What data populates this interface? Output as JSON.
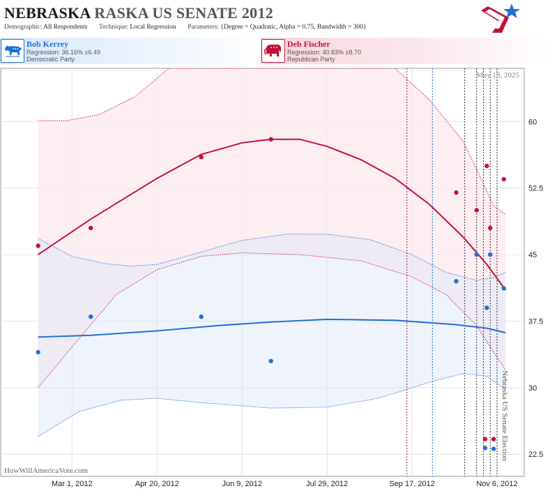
{
  "header": {
    "title_state": "NEBRASKA",
    "title_rest": "RASKA US SENATE 2012",
    "demographic_label": "Demographic:",
    "demographic_value": "All Respondents",
    "technique_label": "Technique:",
    "technique_value": "Local Regression",
    "parameters_label": "Parameters:",
    "parameters_value": "{Degree = Quadratic, Alpha = 0.75, Bandwidth = 300}"
  },
  "candidates": {
    "dem": {
      "name": "Bob Kerrey",
      "regression": "Regression: 36.16% ±6.49",
      "party": "Democratic Party",
      "icon": "donkey-icon",
      "color": "#1f6fd6"
    },
    "rep": {
      "name": "Deb Fischer",
      "regression": "Regression: 40.83% ±8.70",
      "party": "Republican Party",
      "icon": "elephant-icon",
      "color": "#c3113a"
    }
  },
  "watermark": "HowWillAmericaVote.com",
  "date_stamp": "May 13, 2025",
  "colors": {
    "dem": "#1f6fd6",
    "rep": "#c3113a",
    "dem_band": "#dbe7f8",
    "rep_band": "#fce8ee",
    "grid": "#e3e3e3"
  },
  "chart_data": {
    "type": "scatter",
    "x_axis": {
      "type": "date",
      "range": [
        "2012-01-19",
        "2012-11-22"
      ],
      "ticks": [
        {
          "date": "2012-03-01",
          "label": "Mar 1, 2012"
        },
        {
          "date": "2012-04-20",
          "label": "Apr 20, 2012"
        },
        {
          "date": "2012-06-09",
          "label": "Jun 9, 2012"
        },
        {
          "date": "2012-07-29",
          "label": "Jul 29, 2012"
        },
        {
          "date": "2012-09-17",
          "label": "Sep 17, 2012"
        },
        {
          "date": "2012-11-06",
          "label": "Nov 6, 2012"
        }
      ]
    },
    "y_axis": {
      "range": [
        20,
        66
      ],
      "ticks": [
        22.5,
        30,
        37.5,
        45,
        52.5,
        60
      ],
      "tick_labels": [
        "22.5",
        "30",
        "37.5",
        "45",
        "52.5",
        "60"
      ],
      "position": "right"
    },
    "grid": true,
    "election_label": "Nebraska US Senate Election",
    "election_date": "2012-11-06",
    "markers": [
      {
        "date": "2012-09-14",
        "color": "#8b1a66"
      },
      {
        "date": "2012-09-29",
        "color": "#1f6fd6"
      },
      {
        "date": "2012-10-18",
        "color": "#333333"
      },
      {
        "date": "2012-10-25",
        "color": "#333333"
      },
      {
        "date": "2012-10-29",
        "color": "#333333"
      },
      {
        "date": "2012-11-02",
        "color": "#333333"
      },
      {
        "date": "2012-11-06",
        "color": "#333333"
      }
    ],
    "series": [
      {
        "name": "Deb Fischer",
        "party": "rep",
        "points": [
          {
            "date": "2012-02-10",
            "value": 46
          },
          {
            "date": "2012-03-12",
            "value": 48
          },
          {
            "date": "2012-05-16",
            "value": 56
          },
          {
            "date": "2012-06-26",
            "value": 58
          },
          {
            "date": "2012-10-13",
            "value": 52
          },
          {
            "date": "2012-10-25",
            "value": 50
          },
          {
            "date": "2012-10-31",
            "value": 55
          },
          {
            "date": "2012-11-02",
            "value": 48
          },
          {
            "date": "2012-11-10",
            "value": 53.5
          },
          {
            "date": "2012-10-30",
            "value": 24.2
          },
          {
            "date": "2012-11-04",
            "value": 24.2
          }
        ],
        "fit": [
          {
            "date": "2012-02-10",
            "value": 45
          },
          {
            "date": "2012-03-12",
            "value": 49
          },
          {
            "date": "2012-04-20",
            "value": 53.6
          },
          {
            "date": "2012-05-16",
            "value": 56.3
          },
          {
            "date": "2012-06-09",
            "value": 57.6
          },
          {
            "date": "2012-06-26",
            "value": 58
          },
          {
            "date": "2012-07-13",
            "value": 58
          },
          {
            "date": "2012-07-29",
            "value": 57.2
          },
          {
            "date": "2012-08-18",
            "value": 55.7
          },
          {
            "date": "2012-09-07",
            "value": 53.6
          },
          {
            "date": "2012-09-27",
            "value": 50.7
          },
          {
            "date": "2012-10-17",
            "value": 47
          },
          {
            "date": "2012-10-31",
            "value": 43.9
          },
          {
            "date": "2012-11-11",
            "value": 41
          }
        ],
        "upper": [
          {
            "date": "2012-02-10",
            "value": 60.1
          },
          {
            "date": "2012-02-27",
            "value": 60.1
          },
          {
            "date": "2012-03-17",
            "value": 60.8
          },
          {
            "date": "2012-04-07",
            "value": 62.8
          },
          {
            "date": "2012-04-27",
            "value": 66
          },
          {
            "date": "2012-09-07",
            "value": 66
          },
          {
            "date": "2012-09-27",
            "value": 62.5
          },
          {
            "date": "2012-10-17",
            "value": 57.8
          },
          {
            "date": "2012-10-29",
            "value": 53
          },
          {
            "date": "2012-11-04",
            "value": 50.5
          },
          {
            "date": "2012-11-11",
            "value": 49.5
          }
        ],
        "lower": [
          {
            "date": "2012-02-10",
            "value": 30
          },
          {
            "date": "2012-03-05",
            "value": 35.5
          },
          {
            "date": "2012-03-27",
            "value": 40.5
          },
          {
            "date": "2012-04-20",
            "value": 43.3
          },
          {
            "date": "2012-05-16",
            "value": 44.8
          },
          {
            "date": "2012-06-09",
            "value": 45.2
          },
          {
            "date": "2012-07-13",
            "value": 45
          },
          {
            "date": "2012-08-18",
            "value": 44.3
          },
          {
            "date": "2012-09-17",
            "value": 42.5
          },
          {
            "date": "2012-10-07",
            "value": 40.5
          },
          {
            "date": "2012-10-25",
            "value": 37
          },
          {
            "date": "2012-11-04",
            "value": 34
          },
          {
            "date": "2012-11-11",
            "value": 32
          }
        ]
      },
      {
        "name": "Bob Kerrey",
        "party": "dem",
        "points": [
          {
            "date": "2012-02-10",
            "value": 34
          },
          {
            "date": "2012-03-12",
            "value": 38
          },
          {
            "date": "2012-05-16",
            "value": 38
          },
          {
            "date": "2012-06-26",
            "value": 33
          },
          {
            "date": "2012-10-13",
            "value": 42
          },
          {
            "date": "2012-10-25",
            "value": 45
          },
          {
            "date": "2012-10-31",
            "value": 39
          },
          {
            "date": "2012-11-02",
            "value": 45
          },
          {
            "date": "2012-11-10",
            "value": 41.2
          },
          {
            "date": "2012-10-30",
            "value": 23.2
          },
          {
            "date": "2012-11-04",
            "value": 23.1
          }
        ],
        "fit": [
          {
            "date": "2012-02-10",
            "value": 35.7
          },
          {
            "date": "2012-03-12",
            "value": 35.9
          },
          {
            "date": "2012-04-20",
            "value": 36.4
          },
          {
            "date": "2012-05-26",
            "value": 37
          },
          {
            "date": "2012-06-26",
            "value": 37.4
          },
          {
            "date": "2012-07-29",
            "value": 37.7
          },
          {
            "date": "2012-09-07",
            "value": 37.6
          },
          {
            "date": "2012-10-13",
            "value": 37.1
          },
          {
            "date": "2012-10-31",
            "value": 36.7
          },
          {
            "date": "2012-11-11",
            "value": 36.2
          }
        ],
        "upper": [
          {
            "date": "2012-02-10",
            "value": 46.8
          },
          {
            "date": "2012-03-01",
            "value": 44.8
          },
          {
            "date": "2012-03-20",
            "value": 44
          },
          {
            "date": "2012-04-05",
            "value": 43.7
          },
          {
            "date": "2012-04-20",
            "value": 43.9
          },
          {
            "date": "2012-05-16",
            "value": 45.3
          },
          {
            "date": "2012-06-09",
            "value": 46.6
          },
          {
            "date": "2012-07-05",
            "value": 47.3
          },
          {
            "date": "2012-07-29",
            "value": 47.3
          },
          {
            "date": "2012-08-23",
            "value": 46.7
          },
          {
            "date": "2012-09-17",
            "value": 45
          },
          {
            "date": "2012-10-07",
            "value": 43
          },
          {
            "date": "2012-10-25",
            "value": 42.1
          },
          {
            "date": "2012-11-04",
            "value": 42.4
          },
          {
            "date": "2012-11-11",
            "value": 43
          }
        ],
        "lower": [
          {
            "date": "2012-02-10",
            "value": 24.5
          },
          {
            "date": "2012-03-05",
            "value": 27.3
          },
          {
            "date": "2012-03-30",
            "value": 28.6
          },
          {
            "date": "2012-04-20",
            "value": 28.8
          },
          {
            "date": "2012-05-16",
            "value": 28.3
          },
          {
            "date": "2012-06-26",
            "value": 27.7
          },
          {
            "date": "2012-07-29",
            "value": 27.8
          },
          {
            "date": "2012-08-28",
            "value": 28.8
          },
          {
            "date": "2012-09-27",
            "value": 30.6
          },
          {
            "date": "2012-10-17",
            "value": 31.6
          },
          {
            "date": "2012-10-31",
            "value": 31.3
          },
          {
            "date": "2012-11-11",
            "value": 29.8
          }
        ]
      }
    ]
  }
}
